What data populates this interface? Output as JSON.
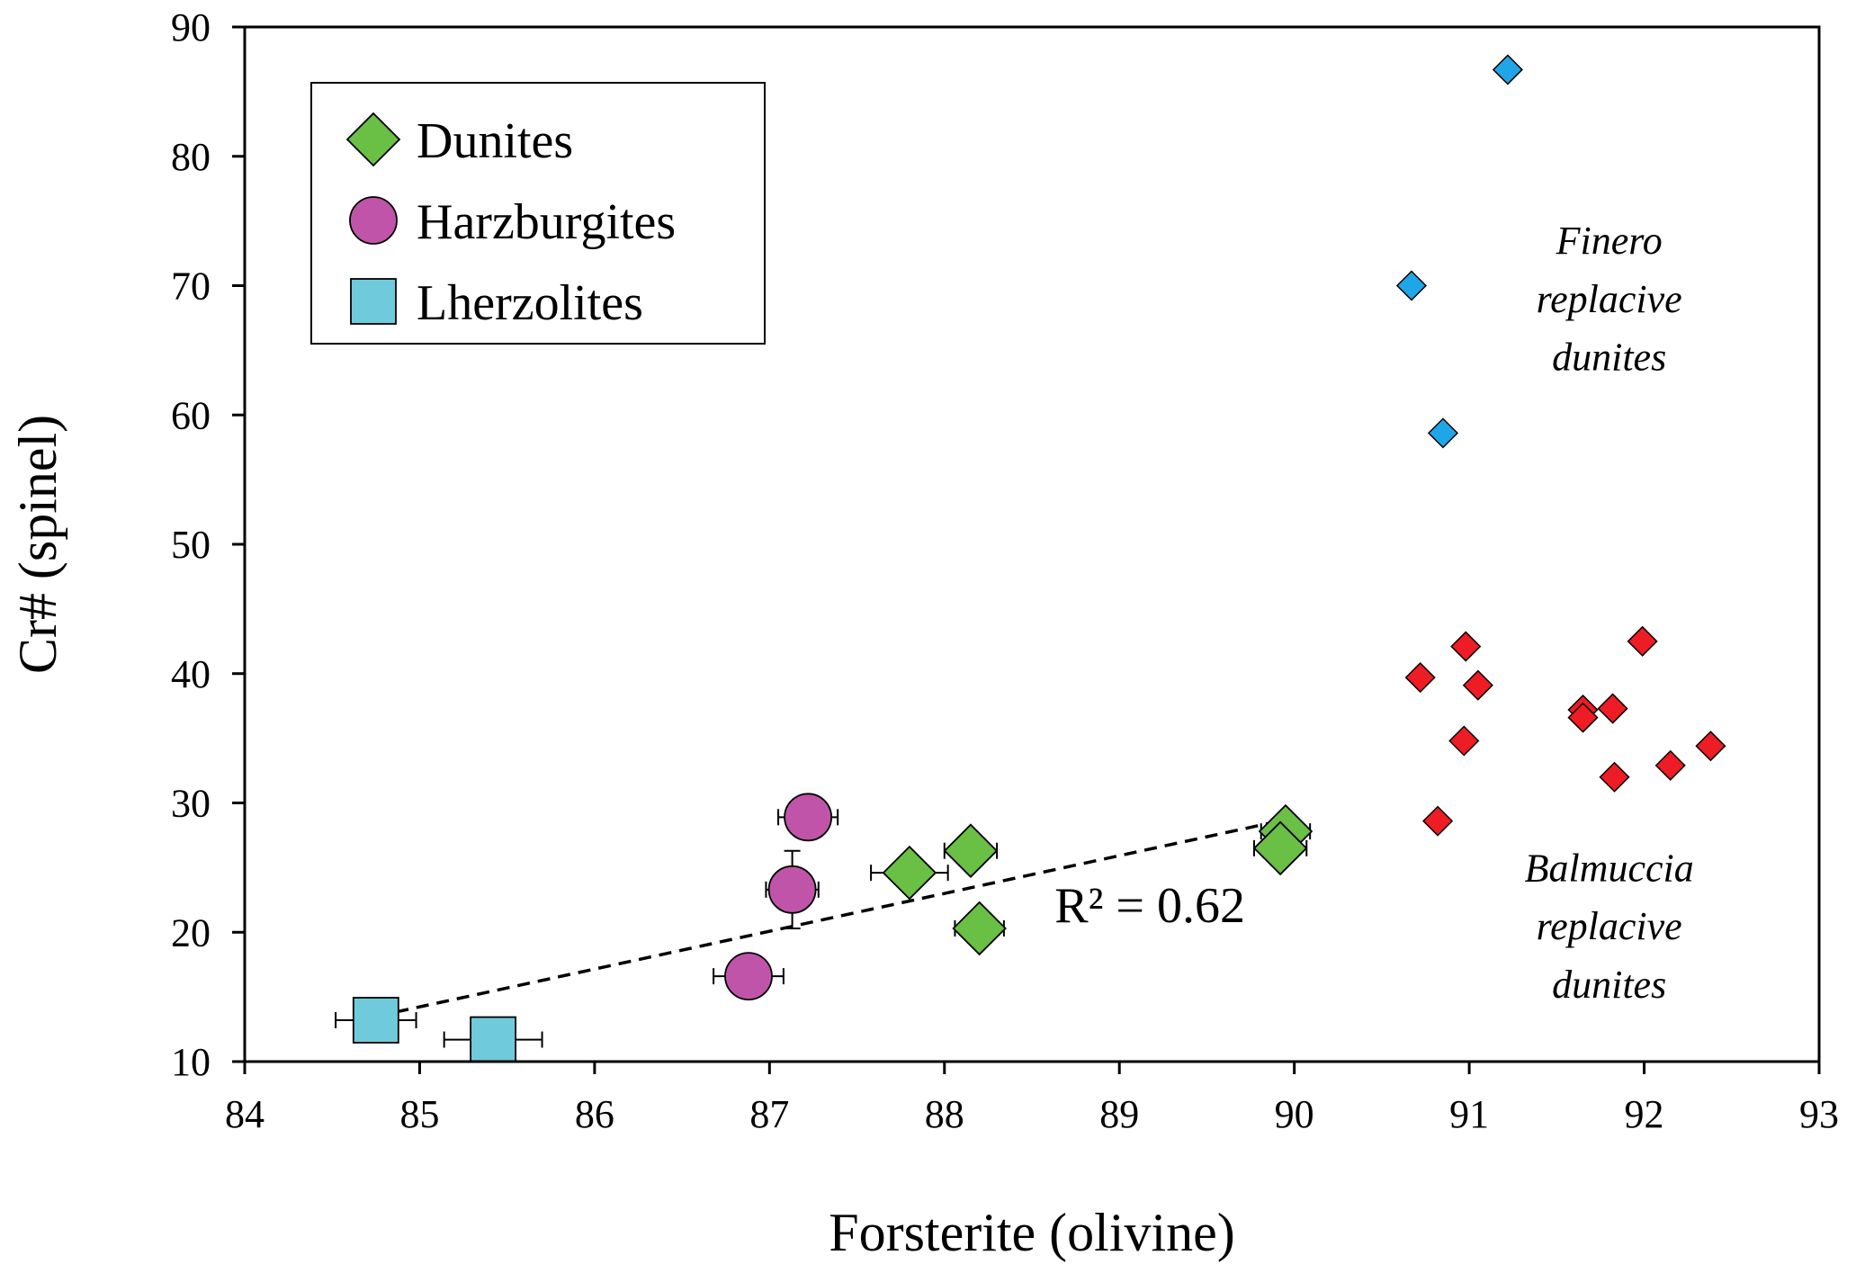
{
  "chart_data": {
    "type": "scatter",
    "xlabel": "Forsterite  (olivine)",
    "ylabel": "Cr# (spinel)",
    "xlim": [
      84,
      93
    ],
    "ylim": [
      10,
      90
    ],
    "xticks": [
      84,
      85,
      86,
      87,
      88,
      89,
      90,
      91,
      92,
      93
    ],
    "yticks": [
      10,
      20,
      30,
      40,
      50,
      60,
      70,
      80,
      90
    ],
    "grid": false,
    "legend_position": "top-left",
    "series": [
      {
        "name": "Dunites",
        "marker": "diamond",
        "color": "#6abf45",
        "points": [
          {
            "x": 87.8,
            "y": 24.6,
            "xerr": 0.22
          },
          {
            "x": 88.15,
            "y": 26.3,
            "xerr": 0.15
          },
          {
            "x": 88.2,
            "y": 20.3,
            "xerr": 0.14
          },
          {
            "x": 89.95,
            "y": 27.8,
            "xerr": 0.14
          },
          {
            "x": 89.92,
            "y": 26.5,
            "xerr": 0.15
          }
        ]
      },
      {
        "name": "Harzburgites",
        "marker": "circle",
        "color": "#c054a8",
        "points": [
          {
            "x": 87.22,
            "y": 28.9,
            "xerr": 0.17,
            "yerr": 1.7
          },
          {
            "x": 87.13,
            "y": 23.3,
            "xerr": 0.15,
            "yerr": 3.0
          },
          {
            "x": 86.88,
            "y": 16.6,
            "xerr": 0.2
          }
        ]
      },
      {
        "name": "Lherzolites",
        "marker": "square",
        "color": "#6fcbdc",
        "points": [
          {
            "x": 84.75,
            "y": 13.2,
            "xerr": 0.23
          },
          {
            "x": 85.42,
            "y": 11.7,
            "xerr": 0.28
          }
        ]
      },
      {
        "name": "",
        "marker": "small-diamond",
        "color": "#1ea6e8",
        "points": [
          {
            "x": 91.22,
            "y": 86.7
          },
          {
            "x": 90.67,
            "y": 70.0
          },
          {
            "x": 90.85,
            "y": 58.6
          }
        ]
      },
      {
        "name": "",
        "marker": "small-diamond",
        "color": "#ee1c24",
        "points": [
          {
            "x": 90.72,
            "y": 39.7
          },
          {
            "x": 90.98,
            "y": 42.1
          },
          {
            "x": 91.05,
            "y": 39.1
          },
          {
            "x": 90.97,
            "y": 34.8
          },
          {
            "x": 90.82,
            "y": 28.6
          },
          {
            "x": 91.65,
            "y": 37.2
          },
          {
            "x": 91.65,
            "y": 36.6
          },
          {
            "x": 91.82,
            "y": 37.3
          },
          {
            "x": 91.83,
            "y": 32.0
          },
          {
            "x": 91.99,
            "y": 42.5
          },
          {
            "x": 92.15,
            "y": 32.9
          },
          {
            "x": 92.38,
            "y": 34.4
          }
        ]
      }
    ],
    "trendline": {
      "style": "dashed",
      "x": [
        84.75,
        89.95
      ],
      "y": [
        13.5,
        28.7
      ],
      "label": "R² = 0.62"
    },
    "annotations": [
      {
        "lines": [
          "Finero",
          "replacive",
          "dunites"
        ],
        "x": 91.8,
        "y": [
          73.5,
          69.0,
          64.5
        ]
      },
      {
        "lines": [
          "Balmuccia",
          "replacive",
          "dunites"
        ],
        "x": 91.8,
        "y": [
          25.0,
          20.5,
          16.0
        ]
      }
    ]
  }
}
